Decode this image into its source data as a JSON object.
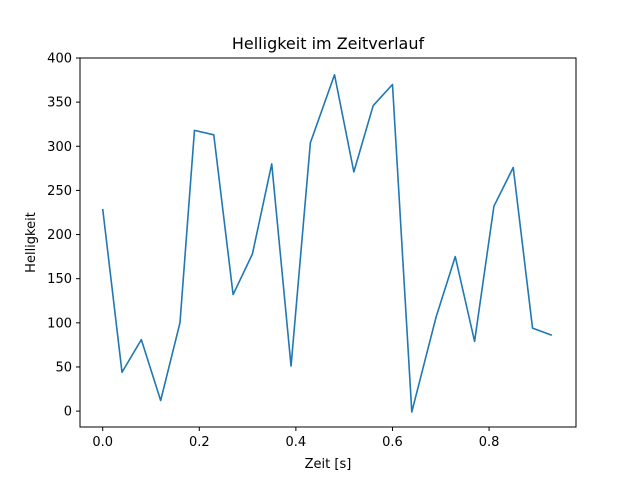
{
  "chart_data": {
    "type": "line",
    "title": "Helligkeit im Zeitverlauf",
    "xlabel": "Zeit [s]",
    "ylabel": "Helligkeit",
    "xlim": [
      -0.047,
      0.98
    ],
    "ylim": [
      -18,
      400
    ],
    "xticks": [
      0.0,
      0.2,
      0.4,
      0.6,
      0.8
    ],
    "xtick_labels": [
      "0.0",
      "0.2",
      "0.4",
      "0.6",
      "0.8"
    ],
    "yticks": [
      0,
      50,
      100,
      150,
      200,
      250,
      300,
      350,
      400
    ],
    "ytick_labels": [
      "0",
      "50",
      "100",
      "150",
      "200",
      "250",
      "300",
      "350",
      "400"
    ],
    "grid": false,
    "line_color": "#1f77b4",
    "x": [
      0.0,
      0.04,
      0.08,
      0.12,
      0.16,
      0.19,
      0.23,
      0.27,
      0.31,
      0.35,
      0.39,
      0.43,
      0.48,
      0.52,
      0.56,
      0.6,
      0.64,
      0.69,
      0.73,
      0.77,
      0.81,
      0.85,
      0.89,
      0.93
    ],
    "series": [
      {
        "values": [
          229,
          44,
          81,
          12,
          100,
          318,
          313,
          132,
          178,
          280,
          51,
          304,
          381,
          271,
          346,
          370,
          -1,
          106,
          175,
          79,
          232,
          276,
          94,
          86
        ]
      }
    ]
  }
}
